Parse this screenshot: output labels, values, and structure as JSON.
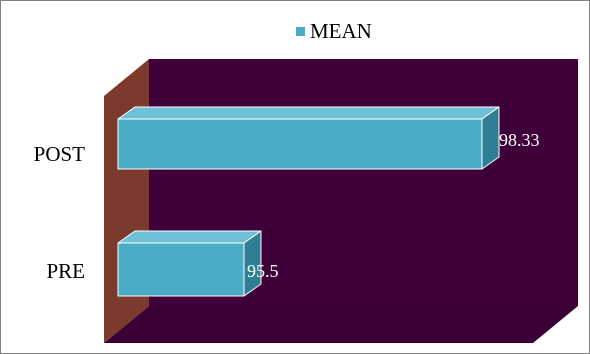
{
  "chart_data": {
    "type": "bar",
    "orientation": "horizontal",
    "style": "3d",
    "categories": [
      "PRE",
      "POST"
    ],
    "series": [
      {
        "name": "MEAN",
        "values": [
          95.5,
          98.33
        ],
        "labels": [
          "95.5",
          "98.33"
        ]
      }
    ],
    "title": "",
    "xlabel": "",
    "ylabel": "",
    "legend": {
      "position": "top",
      "entries": [
        "MEAN"
      ]
    },
    "grid": false,
    "colors": {
      "bar_front": "#4bacc6",
      "bar_top": "#6fc0d6",
      "bar_side": "#2f7f94",
      "bar_edge": "#ffffff",
      "back_wall": "#3f0039",
      "side_wall": "#7b3a2c",
      "floor": "#3a0035"
    }
  }
}
